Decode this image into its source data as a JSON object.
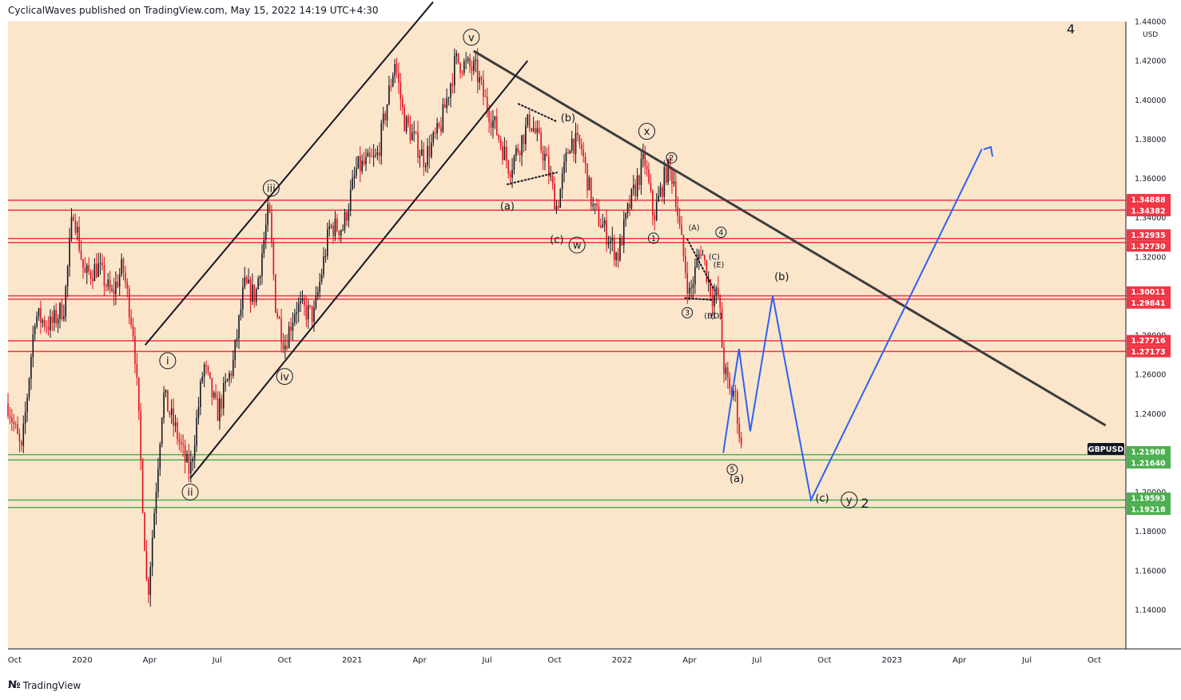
{
  "header": {
    "text": "CyclicalWaves published on TradingView.com, May 15, 2022 14:19 UTC+4:30"
  },
  "footer": {
    "logo_text": "TradingView"
  },
  "symbol_label": "GBPUSD",
  "currency": "USD",
  "corner_label": "4",
  "colors": {
    "background": "#fbe5cb",
    "candle_up": "#131722",
    "candle_down": "#e0101e",
    "red_line": "#f23645",
    "green_line": "#4caf50",
    "trend": "#3d3d3d",
    "projection": "#2d62f2"
  },
  "chart_data": {
    "type": "candlestick",
    "symbol": "GBPUSD",
    "ylim": [
      1.12,
      1.44
    ],
    "y_ticks": [
      1.14,
      1.16,
      1.18,
      1.2,
      1.22,
      1.24,
      1.26,
      1.28,
      1.3,
      1.32,
      1.34,
      1.36,
      1.38,
      1.4,
      1.42,
      1.44
    ],
    "x_ticks": [
      {
        "label": "Oct",
        "t": 0
      },
      {
        "label": "2020",
        "t": 3
      },
      {
        "label": "Apr",
        "t": 6
      },
      {
        "label": "Jul",
        "t": 9
      },
      {
        "label": "Oct",
        "t": 12
      },
      {
        "label": "2021",
        "t": 15
      },
      {
        "label": "Apr",
        "t": 18
      },
      {
        "label": "Jul",
        "t": 21
      },
      {
        "label": "Oct",
        "t": 24
      },
      {
        "label": "2022",
        "t": 27
      },
      {
        "label": "Apr",
        "t": 30
      },
      {
        "label": "Jul",
        "t": 33
      },
      {
        "label": "Oct",
        "t": 36
      },
      {
        "label": "2023",
        "t": 39
      },
      {
        "label": "Apr",
        "t": 42
      },
      {
        "label": "Jul",
        "t": 45
      },
      {
        "label": "Oct",
        "t": 48
      }
    ],
    "x_range": [
      -0.3,
      49.4
    ],
    "price_path": [
      [
        -0.3,
        1.245
      ],
      [
        0.3,
        1.22
      ],
      [
        0.9,
        1.29
      ],
      [
        1.6,
        1.285
      ],
      [
        2.2,
        1.295
      ],
      [
        2.6,
        1.345
      ],
      [
        3.1,
        1.31
      ],
      [
        3.7,
        1.315
      ],
      [
        4.3,
        1.3
      ],
      [
        4.8,
        1.315
      ],
      [
        5.3,
        1.28
      ],
      [
        5.5,
        1.24
      ],
      [
        5.9,
        1.145
      ],
      [
        6.2,
        1.19
      ],
      [
        6.6,
        1.25
      ],
      [
        7.2,
        1.23
      ],
      [
        7.6,
        1.215
      ],
      [
        7.8,
        1.21
      ],
      [
        8.4,
        1.265
      ],
      [
        9.0,
        1.24
      ],
      [
        9.7,
        1.265
      ],
      [
        10.2,
        1.305
      ],
      [
        10.7,
        1.3
      ],
      [
        11.3,
        1.345
      ],
      [
        11.6,
        1.295
      ],
      [
        12.0,
        1.275
      ],
      [
        12.5,
        1.295
      ],
      [
        13.3,
        1.29
      ],
      [
        14.0,
        1.335
      ],
      [
        14.6,
        1.335
      ],
      [
        15.2,
        1.365
      ],
      [
        16.1,
        1.37
      ],
      [
        16.9,
        1.42
      ],
      [
        17.3,
        1.39
      ],
      [
        18.2,
        1.37
      ],
      [
        18.9,
        1.385
      ],
      [
        19.6,
        1.42
      ],
      [
        20.5,
        1.415
      ],
      [
        20.9,
        1.4
      ],
      [
        21.4,
        1.385
      ],
      [
        22.0,
        1.365
      ],
      [
        22.9,
        1.39
      ],
      [
        23.6,
        1.37
      ],
      [
        24.1,
        1.345
      ],
      [
        24.7,
        1.38
      ],
      [
        25.2,
        1.375
      ],
      [
        25.7,
        1.345
      ],
      [
        26.4,
        1.33
      ],
      [
        26.8,
        1.32
      ],
      [
        27.3,
        1.345
      ],
      [
        28.0,
        1.37
      ],
      [
        28.4,
        1.34
      ],
      [
        29.0,
        1.365
      ],
      [
        29.3,
        1.36
      ],
      [
        29.6,
        1.33
      ],
      [
        30.0,
        1.3
      ],
      [
        30.5,
        1.325
      ],
      [
        31.0,
        1.3
      ],
      [
        31.3,
        1.3
      ],
      [
        31.5,
        1.265
      ],
      [
        31.8,
        1.25
      ],
      [
        32.0,
        1.252
      ],
      [
        32.3,
        1.222
      ]
    ],
    "horizontal_levels": [
      {
        "value": 1.34888,
        "label": "1.34888",
        "color": "red"
      },
      {
        "value": 1.34382,
        "label": "1.34382",
        "color": "red"
      },
      {
        "value": 1.32935,
        "label": "1.32935",
        "color": "red"
      },
      {
        "value": 1.3273,
        "label": "1.32730",
        "color": "red"
      },
      {
        "value": 1.30011,
        "label": "1.30011",
        "color": "red"
      },
      {
        "value": 1.29841,
        "label": "1.29841",
        "color": "red"
      },
      {
        "value": 1.27716,
        "label": "1.27716",
        "color": "red"
      },
      {
        "value": 1.27173,
        "label": "1.27173",
        "color": "red"
      },
      {
        "value": 1.21908,
        "label": "1.21908",
        "color": "green"
      },
      {
        "value": 1.2164,
        "label": "1.21640",
        "color": "green"
      },
      {
        "value": 1.19593,
        "label": "1.19593",
        "color": "green"
      },
      {
        "value": 1.19218,
        "label": "1.19218",
        "color": "green"
      }
    ],
    "trend_lines": [
      {
        "x1": 20.4,
        "y1": 1.425,
        "x2": 48.5,
        "y2": 1.234,
        "width": 3
      },
      {
        "x1": 5.8,
        "y1": 1.275,
        "x2": 18.6,
        "y2": 1.45,
        "width": 2
      },
      {
        "x1": 7.8,
        "y1": 1.207,
        "x2": 22.8,
        "y2": 1.42,
        "width": 2
      }
    ],
    "dotted_lines": [
      {
        "x1": 22.4,
        "y1": 1.398,
        "x2": 24.1,
        "y2": 1.389
      },
      {
        "x1": 21.9,
        "y1": 1.357,
        "x2": 24.1,
        "y2": 1.363
      },
      {
        "x1": 29.9,
        "y1": 1.329,
        "x2": 31.1,
        "y2": 1.303
      },
      {
        "x1": 29.8,
        "y1": 1.299,
        "x2": 31.0,
        "y2": 1.298
      }
    ],
    "projection": [
      [
        31.5,
        1.22
      ],
      [
        32.2,
        1.273
      ],
      [
        32.7,
        1.231
      ],
      [
        33.7,
        1.3
      ],
      [
        35.4,
        1.196
      ],
      [
        43.0,
        1.375
      ]
    ],
    "projection_arrow": {
      "from": [
        42.8,
        1.369
      ],
      "to": [
        43.4,
        1.376
      ]
    },
    "annotations": [
      {
        "text": "v",
        "t": 20.3,
        "v": 1.432,
        "circle": true
      },
      {
        "text": "i",
        "t": 6.8,
        "v": 1.267,
        "circle": true
      },
      {
        "text": "ii",
        "t": 7.8,
        "v": 1.2,
        "circle": true
      },
      {
        "text": "iii",
        "t": 11.4,
        "v": 1.355,
        "circle": true
      },
      {
        "text": "iv",
        "t": 12.0,
        "v": 1.259,
        "circle": true
      },
      {
        "text": "x",
        "t": 28.1,
        "v": 1.384,
        "circle": true
      },
      {
        "text": "w",
        "t": 25.0,
        "v": 1.326,
        "circle": true
      },
      {
        "text": "y",
        "t": 37.1,
        "v": 1.196,
        "circle": true
      },
      {
        "text": "(b)",
        "t": 24.6,
        "v": 1.391,
        "circle": false
      },
      {
        "text": "(a)",
        "t": 21.9,
        "v": 1.346,
        "circle": false
      },
      {
        "text": "(c)",
        "t": 24.1,
        "v": 1.329,
        "circle": false
      },
      {
        "text": "(A)",
        "t": 30.2,
        "v": 1.335,
        "circle": false,
        "small": true
      },
      {
        "text": "(C)",
        "t": 31.1,
        "v": 1.32,
        "circle": false,
        "small": true
      },
      {
        "text": "(E)",
        "t": 31.3,
        "v": 1.316,
        "circle": false,
        "small": true
      },
      {
        "text": "(B)",
        "t": 30.9,
        "v": 1.29,
        "circle": false,
        "small": true
      },
      {
        "text": "(D)",
        "t": 31.2,
        "v": 1.29,
        "circle": false,
        "small": true
      },
      {
        "text": "(b)",
        "t": 34.1,
        "v": 1.31,
        "circle": false
      },
      {
        "text": "(a)",
        "t": 32.1,
        "v": 1.207,
        "circle": false
      },
      {
        "text": "(c)",
        "t": 35.9,
        "v": 1.197,
        "circle": false
      },
      {
        "text": "1",
        "t": 28.4,
        "v": 1.3295,
        "circle": true,
        "small": true
      },
      {
        "text": "2",
        "t": 29.2,
        "v": 1.3705,
        "circle": true,
        "small": true
      },
      {
        "text": "3",
        "t": 29.9,
        "v": 1.2915,
        "circle": true,
        "small": true
      },
      {
        "text": "4",
        "t": 31.4,
        "v": 1.3325,
        "circle": true,
        "small": true
      },
      {
        "text": "5",
        "t": 31.9,
        "v": 1.2115,
        "circle": true,
        "small": true
      },
      {
        "text": "2",
        "t": 37.8,
        "v": 1.1945,
        "circle": false,
        "bold": true
      }
    ]
  }
}
